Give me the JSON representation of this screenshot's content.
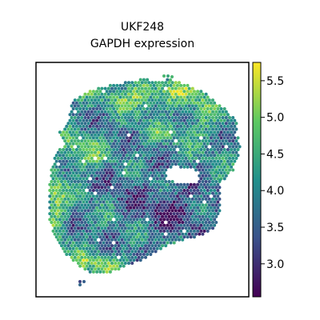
{
  "chart_data": {
    "type": "scatter",
    "subtype": "spatial-hexagonal-spot-map",
    "title": [
      "UKF248",
      "GAPDH expression"
    ],
    "xlabel": "",
    "ylabel": "",
    "axes_ticks_visible": false,
    "grid": false,
    "colormap": "viridis",
    "colormap_stops": [
      "#440154",
      "#3b528b",
      "#21918c",
      "#5ec962",
      "#fde725"
    ],
    "color_range": [
      2.55,
      5.75
    ],
    "colorbar": {
      "position": "right",
      "ticks": [
        3.0,
        3.5,
        4.0,
        4.5,
        5.0,
        5.5
      ],
      "tick_labels": [
        "3.0",
        "3.5",
        "4.0",
        "4.5",
        "5.0",
        "5.5"
      ]
    },
    "value_summary": {
      "min": 2.6,
      "max": 5.7,
      "typical": 3.9,
      "high_regions": [
        "top ridge",
        "left edge",
        "bottom-left margin"
      ],
      "low_regions": [
        "lower-right interior"
      ]
    }
  }
}
